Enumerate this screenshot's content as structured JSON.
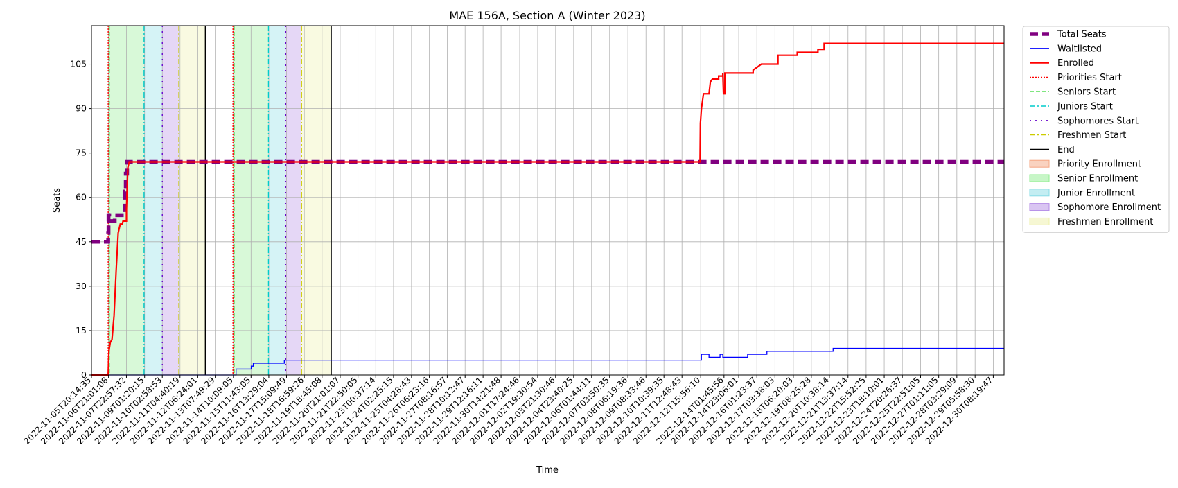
{
  "chart_data": {
    "type": "line",
    "title": "MAE 156A, Section A (Winter 2023)",
    "xlabel": "Time",
    "ylabel": "Seats",
    "ylim": [
      0,
      118
    ],
    "y_ticks": [
      0,
      15,
      30,
      45,
      60,
      75,
      90,
      105
    ],
    "x_range": [
      "2022-11-05T20:14:35",
      "2022-12-31T00:00:00"
    ],
    "x_ticks": [
      "2022-11-05T20:14:35",
      "2022-11-06T21:01:08",
      "2022-11-07T22:57:32",
      "2022-11-09T01:20:15",
      "2022-11-10T02:58:53",
      "2022-11-11T04:40:19",
      "2022-11-12T06:24:01",
      "2022-11-13T07:49:29",
      "2022-11-14T10:09:05",
      "2022-11-15T11:43:05",
      "2022-11-16T13:29:04",
      "2022-11-17T15:09:49",
      "2022-11-18T16:59:26",
      "2022-11-19T18:45:08",
      "2022-11-20T21:01:07",
      "2022-11-21T22:50:05",
      "2022-11-23T00:37:14",
      "2022-11-24T02:25:15",
      "2022-11-25T04:28:43",
      "2022-11-26T06:23:16",
      "2022-11-27T08:16:57",
      "2022-11-28T10:12:47",
      "2022-11-29T12:16:11",
      "2022-11-30T14:21:48",
      "2022-12-01T17:24:46",
      "2022-12-02T19:30:54",
      "2022-12-03T21:30:46",
      "2022-12-04T23:40:25",
      "2022-12-06T01:44:11",
      "2022-12-07T03:50:35",
      "2022-12-08T06:19:36",
      "2022-12-09T08:33:46",
      "2022-12-10T10:39:35",
      "2022-12-11T12:48:43",
      "2022-12-12T15:56:10",
      "2022-12-14T01:45:56",
      "2022-12-14T23:06:01",
      "2022-12-16T01:23:37",
      "2022-12-17T03:38:03",
      "2022-12-18T06:20:03",
      "2022-12-19T08:25:28",
      "2022-12-20T10:38:14",
      "2022-12-21T13:37:14",
      "2022-12-22T15:52:25",
      "2022-12-23T18:10:01",
      "2022-12-24T20:26:37",
      "2022-12-25T22:51:05",
      "2022-12-27T01:11:05",
      "2022-12-28T03:29:09",
      "2022-12-29T05:58:30",
      "2022-12-30T08:19:47"
    ],
    "grid": true,
    "legend_position": "outside-right",
    "series": [
      {
        "name": "Total Seats",
        "color": "#800080",
        "style": "dashed-thick",
        "points": [
          [
            "2022-11-05T20:14:35",
            45
          ],
          [
            "2022-11-06T20:30:00",
            45
          ],
          [
            "2022-11-06T20:30:00",
            48
          ],
          [
            "2022-11-06T21:00:00",
            48
          ],
          [
            "2022-11-06T21:00:00",
            54
          ],
          [
            "2022-11-06T22:00:00",
            54
          ],
          [
            "2022-11-06T22:00:00",
            52
          ],
          [
            "2022-11-07T06:00:00",
            52
          ],
          [
            "2022-11-07T06:00:00",
            54
          ],
          [
            "2022-11-07T20:30:00",
            54
          ],
          [
            "2022-11-07T20:30:00",
            62
          ],
          [
            "2022-11-07T22:00:00",
            62
          ],
          [
            "2022-11-07T22:00:00",
            68
          ],
          [
            "2022-11-08T00:00:00",
            68
          ],
          [
            "2022-11-08T00:00:00",
            72
          ],
          [
            "2022-12-31T00:00:00",
            72
          ]
        ]
      },
      {
        "name": "Waitlisted",
        "color": "#0000ff",
        "style": "solid",
        "points": [
          [
            "2022-11-05T20:14:35",
            0
          ],
          [
            "2022-11-14T14:00:00",
            0
          ],
          [
            "2022-11-14T14:00:00",
            2
          ],
          [
            "2022-11-15T12:00:00",
            2
          ],
          [
            "2022-11-15T12:00:00",
            3
          ],
          [
            "2022-11-15T15:00:00",
            3
          ],
          [
            "2022-11-15T15:00:00",
            4
          ],
          [
            "2022-11-17T12:00:00",
            4
          ],
          [
            "2022-11-17T12:00:00",
            5
          ],
          [
            "2022-12-12T17:00:00",
            5
          ],
          [
            "2022-12-12T17:00:00",
            7
          ],
          [
            "2022-12-13T04:00:00",
            7
          ],
          [
            "2022-12-13T04:00:00",
            6
          ],
          [
            "2022-12-13T20:00:00",
            6
          ],
          [
            "2022-12-13T20:00:00",
            7
          ],
          [
            "2022-12-14T00:00:00",
            7
          ],
          [
            "2022-12-14T00:00:00",
            6
          ],
          [
            "2022-12-15T12:00:00",
            6
          ],
          [
            "2022-12-15T12:00:00",
            7
          ],
          [
            "2022-12-16T16:00:00",
            7
          ],
          [
            "2022-12-16T16:00:00",
            8
          ],
          [
            "2022-12-20T16:00:00",
            8
          ],
          [
            "2022-12-20T16:00:00",
            9
          ],
          [
            "2022-12-31T00:00:00",
            9
          ]
        ]
      },
      {
        "name": "Enrolled",
        "color": "#ff0000",
        "style": "solid-thick",
        "points": [
          [
            "2022-11-05T20:14:35",
            0
          ],
          [
            "2022-11-06T20:30:00",
            0
          ],
          [
            "2022-11-06T21:30:00",
            8
          ],
          [
            "2022-11-06T23:30:00",
            11
          ],
          [
            "2022-11-07T02:00:00",
            12
          ],
          [
            "2022-11-07T05:00:00",
            20
          ],
          [
            "2022-11-07T08:00:00",
            35
          ],
          [
            "2022-11-07T11:00:00",
            48
          ],
          [
            "2022-11-07T14:00:00",
            51
          ],
          [
            "2022-11-07T17:00:00",
            51
          ],
          [
            "2022-11-07T18:00:00",
            52
          ],
          [
            "2022-11-07T23:00:00",
            52
          ],
          [
            "2022-11-07T23:00:00",
            56
          ],
          [
            "2022-11-08T01:00:00",
            70
          ],
          [
            "2022-11-08T03:00:00",
            72
          ],
          [
            "2022-12-12T15:00:00",
            72
          ],
          [
            "2022-12-12T15:30:00",
            85
          ],
          [
            "2022-12-12T17:00:00",
            90
          ],
          [
            "2022-12-12T20:00:00",
            95
          ],
          [
            "2022-12-13T04:00:00",
            95
          ],
          [
            "2022-12-13T06:00:00",
            99
          ],
          [
            "2022-12-13T09:00:00",
            100
          ],
          [
            "2022-12-13T18:00:00",
            100
          ],
          [
            "2022-12-13T18:00:00",
            101
          ],
          [
            "2022-12-14T00:00:00",
            101
          ],
          [
            "2022-12-14T00:00:00",
            102
          ],
          [
            "2022-12-14T01:00:00",
            95
          ],
          [
            "2022-12-14T03:00:00",
            95
          ],
          [
            "2022-12-14T03:00:00",
            102
          ],
          [
            "2022-12-15T20:00:00",
            102
          ],
          [
            "2022-12-15T20:00:00",
            103
          ],
          [
            "2022-12-16T02:00:00",
            104
          ],
          [
            "2022-12-16T08:00:00",
            105
          ],
          [
            "2022-12-17T08:00:00",
            105
          ],
          [
            "2022-12-17T08:00:00",
            108
          ],
          [
            "2022-12-18T12:00:00",
            108
          ],
          [
            "2022-12-18T12:00:00",
            109
          ],
          [
            "2022-12-19T18:00:00",
            109
          ],
          [
            "2022-12-19T18:00:00",
            110
          ],
          [
            "2022-12-20T03:00:00",
            110
          ],
          [
            "2022-12-20T03:00:00",
            112
          ],
          [
            "2022-12-31T00:00:00",
            112
          ]
        ]
      }
    ],
    "markers": [
      {
        "name": "Priorities Start",
        "color": "#ff0000",
        "style": "dotted",
        "times": [
          "2022-11-06T20:30:00",
          "2022-11-14T09:30:00"
        ]
      },
      {
        "name": "Seniors Start",
        "color": "#00cc00",
        "style": "dashed",
        "times": [
          "2022-11-06T22:00:00",
          "2022-11-14T11:00:00"
        ]
      },
      {
        "name": "Juniors Start",
        "color": "#00cccc",
        "style": "dashdot",
        "times": [
          "2022-11-09T00:30:00",
          "2022-11-16T13:00:00"
        ]
      },
      {
        "name": "Sophomores Start",
        "color": "#6600cc",
        "style": "loosedot",
        "times": [
          "2022-11-10T03:00:00",
          "2022-11-17T14:00:00"
        ]
      },
      {
        "name": "Freshmen Start",
        "color": "#cccc00",
        "style": "dashdot",
        "times": [
          "2022-11-11T03:00:00",
          "2022-11-18T13:00:00"
        ]
      },
      {
        "name": "End",
        "color": "#000000",
        "style": "solid",
        "times": [
          "2022-11-12T17:30:00",
          "2022-11-20T08:00:00"
        ]
      }
    ],
    "periods": [
      {
        "name": "Priority Enrollment",
        "color": "#f4a582",
        "ranges": [
          [
            "2022-11-06T20:30:00",
            "2022-11-06T22:00:00"
          ],
          [
            "2022-11-14T09:30:00",
            "2022-11-14T11:00:00"
          ]
        ]
      },
      {
        "name": "Senior Enrollment",
        "color": "#90ee90",
        "ranges": [
          [
            "2022-11-06T22:00:00",
            "2022-11-09T00:30:00"
          ],
          [
            "2022-11-14T11:00:00",
            "2022-11-16T13:00:00"
          ]
        ]
      },
      {
        "name": "Junior Enrollment",
        "color": "#87dce6",
        "ranges": [
          [
            "2022-11-09T00:30:00",
            "2022-11-10T03:00:00"
          ],
          [
            "2022-11-16T13:00:00",
            "2022-11-17T14:00:00"
          ]
        ]
      },
      {
        "name": "Sophomore Enrollment",
        "color": "#b48ce6",
        "ranges": [
          [
            "2022-11-10T03:00:00",
            "2022-11-11T03:00:00"
          ],
          [
            "2022-11-17T14:00:00",
            "2022-11-18T13:00:00"
          ]
        ]
      },
      {
        "name": "Freshmen Enrollment",
        "color": "#eef0a8",
        "ranges": [
          [
            "2022-11-11T03:00:00",
            "2022-11-12T17:30:00"
          ],
          [
            "2022-11-18T13:00:00",
            "2022-11-20T08:00:00"
          ]
        ]
      }
    ],
    "legend": [
      "Total Seats",
      "Waitlisted",
      "Enrolled",
      "Priorities Start",
      "Seniors Start",
      "Juniors Start",
      "Sophomores Start",
      "Freshmen Start",
      "End",
      "Priority Enrollment",
      "Senior Enrollment",
      "Junior Enrollment",
      "Sophomore Enrollment",
      "Freshmen Enrollment"
    ]
  }
}
